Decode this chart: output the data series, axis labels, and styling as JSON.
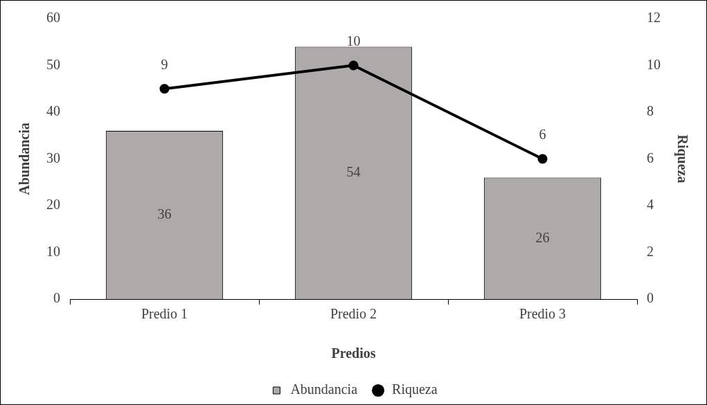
{
  "chart_data": {
    "type": "bar",
    "xlabel": "Predios",
    "ylabel": "Abundancia",
    "y2label": "Riqueza",
    "categories": [
      "Predio 1",
      "Predio 2",
      "Predio 3"
    ],
    "series": [
      {
        "name": "Abundancia",
        "color": "#aeaaaa",
        "values": [
          36,
          54,
          26
        ]
      },
      {
        "name": "Riqueza",
        "type": "line",
        "axis": "y2",
        "color": "#000000",
        "values": [
          9,
          10,
          6
        ]
      }
    ],
    "ylim": [
      0,
      60
    ],
    "yticks": [
      0,
      10,
      20,
      30,
      40,
      50,
      60
    ],
    "y2lim": [
      0,
      12
    ],
    "y2ticks": [
      0,
      2,
      4,
      6,
      8,
      10,
      12
    ],
    "grid": false,
    "legend": "bottom",
    "marker": "circle",
    "line_style": "solid",
    "data_labels": true
  }
}
